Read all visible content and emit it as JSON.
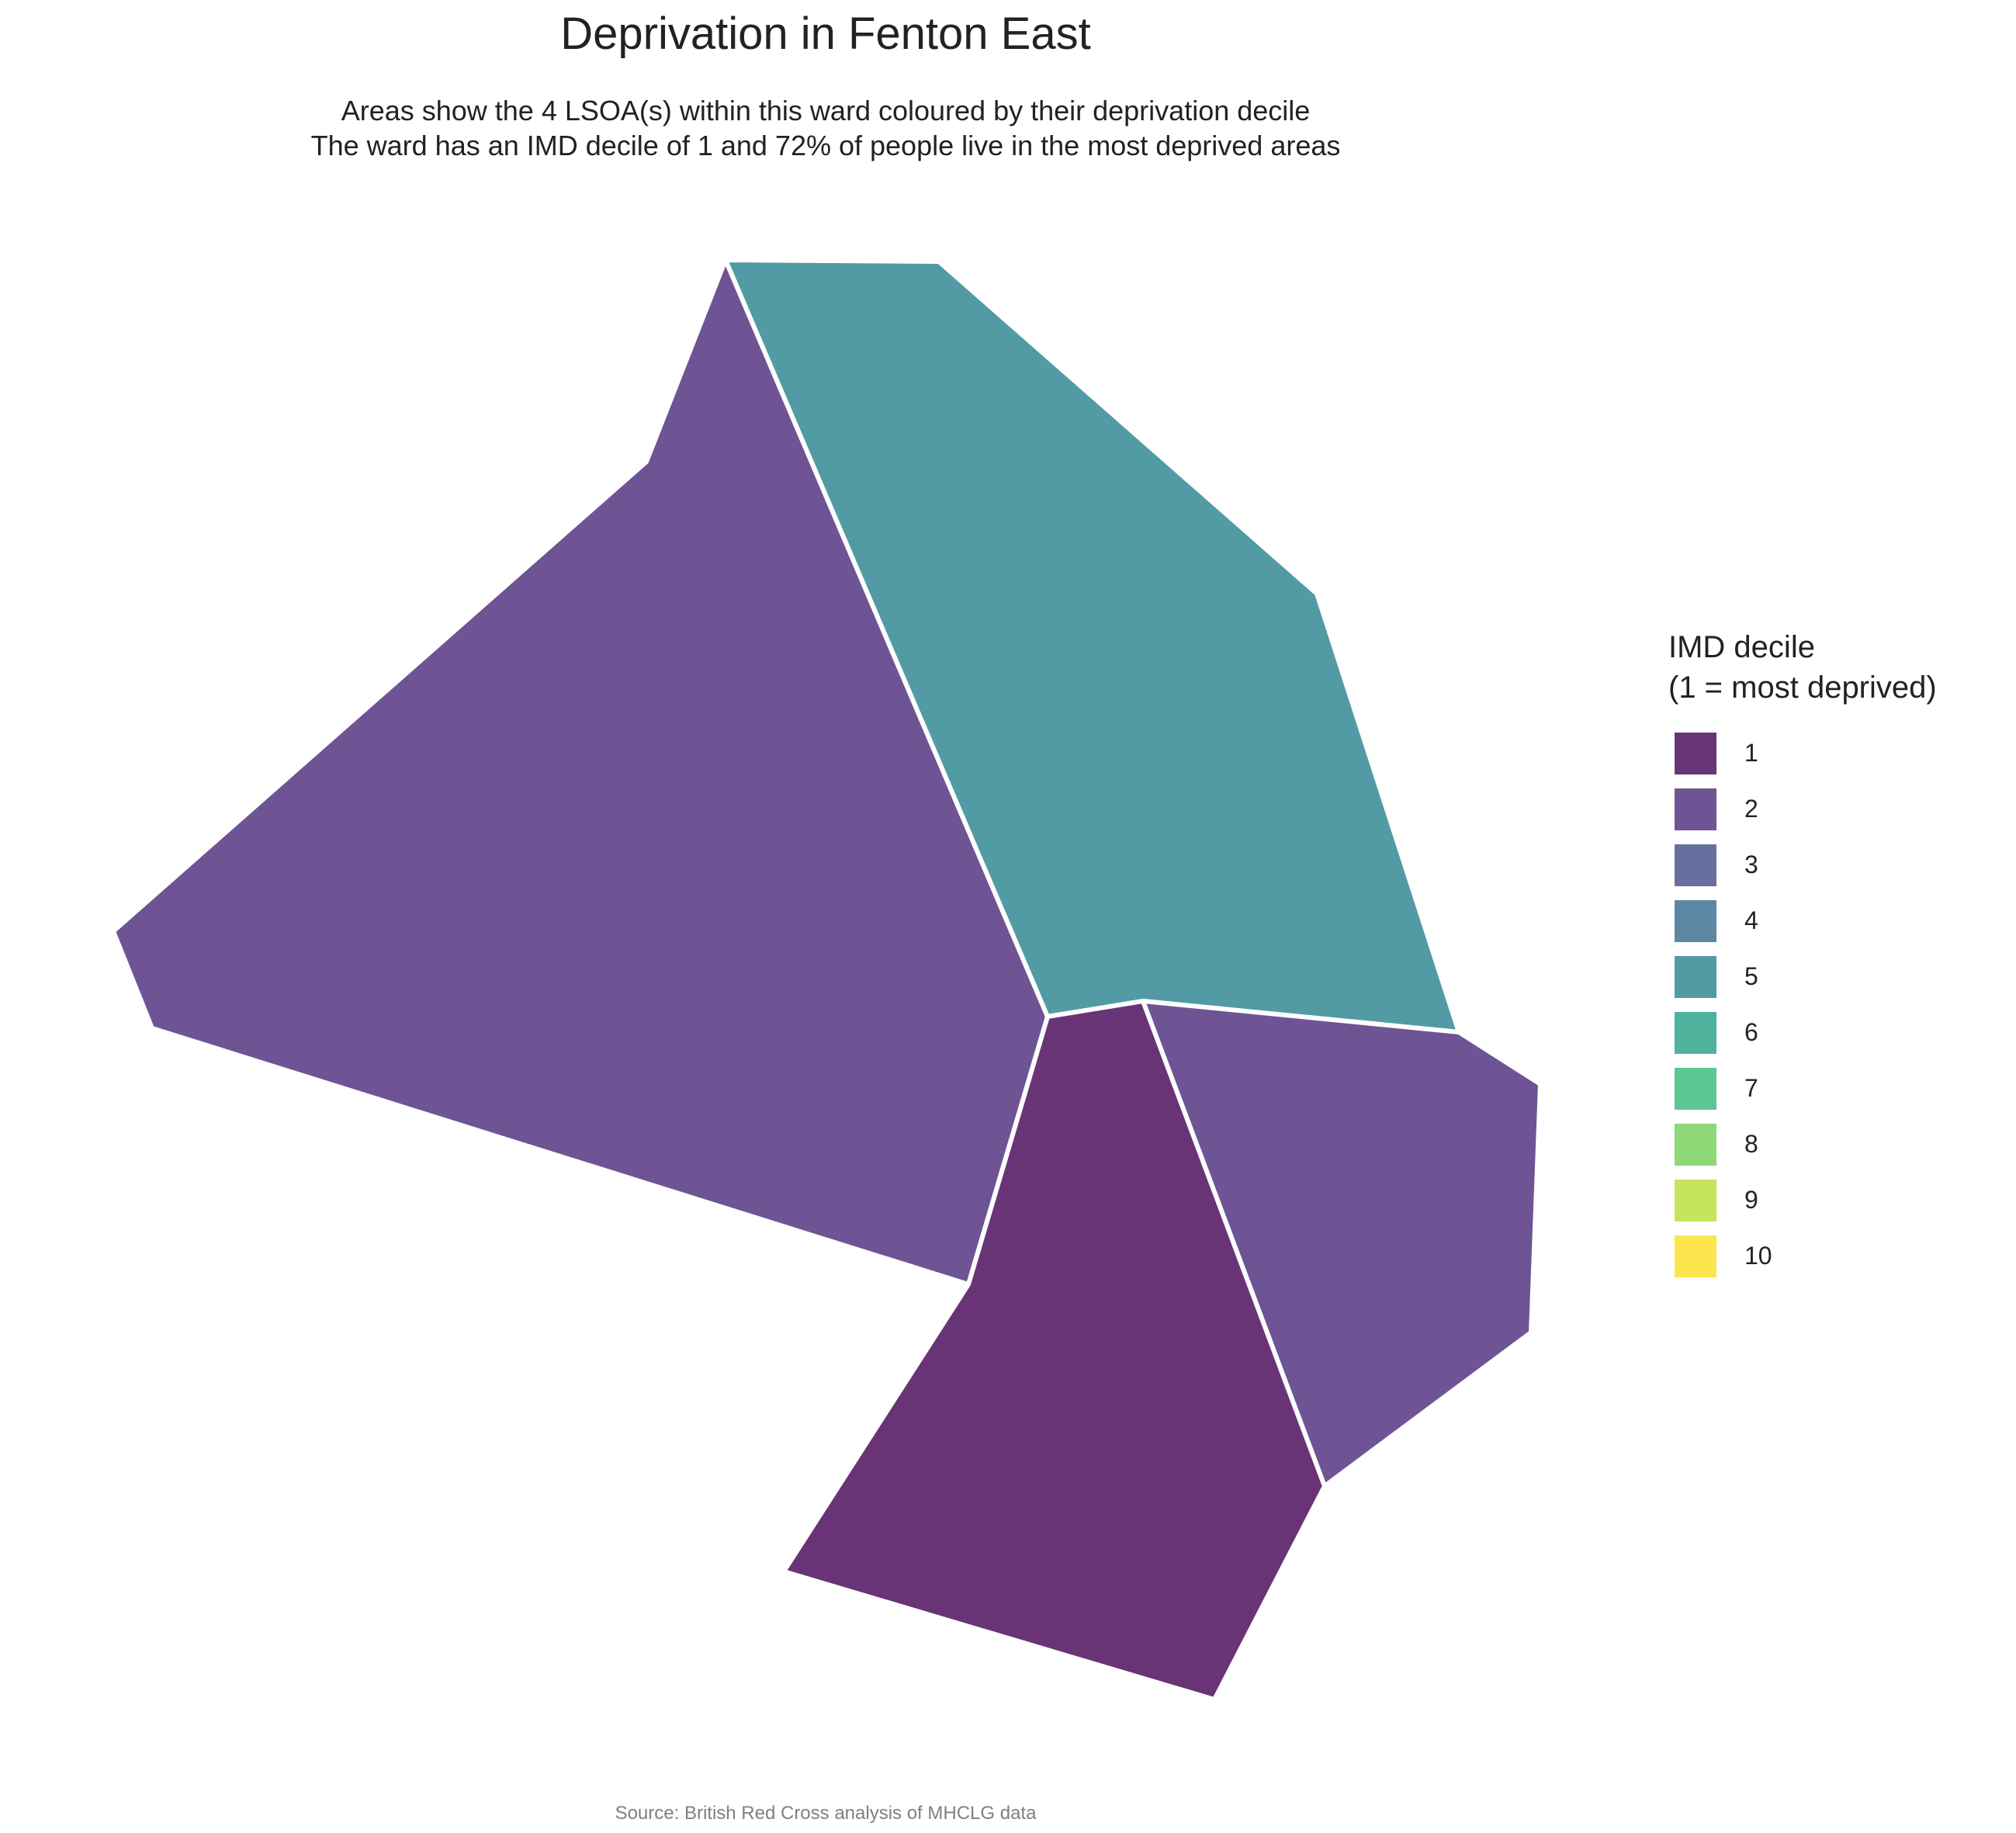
{
  "title": "Deprivation in Fenton East",
  "subtitle_lines": [
    "Areas show the 4 LSOA(s) within this ward coloured by their deprivation decile",
    "The ward has an IMD decile of 1 and 72% of people live in the most deprived areas"
  ],
  "legend": {
    "title_lines": [
      "IMD decile",
      "(1 = most deprived)"
    ],
    "items": [
      {
        "label": "1",
        "color": "#693476"
      },
      {
        "label": "2",
        "color": "#6E5494"
      },
      {
        "label": "3",
        "color": "#6670A0"
      },
      {
        "label": "4",
        "color": "#5C87A5"
      },
      {
        "label": "5",
        "color": "#529BA4"
      },
      {
        "label": "6",
        "color": "#4FB29D"
      },
      {
        "label": "7",
        "color": "#5DC792"
      },
      {
        "label": "8",
        "color": "#8ED877"
      },
      {
        "label": "9",
        "color": "#C6E55A"
      },
      {
        "label": "10",
        "color": "#FBE74D"
      }
    ]
  },
  "areas": [
    {
      "id": "lsoa-west",
      "decile": 2
    },
    {
      "id": "lsoa-north",
      "decile": 5
    },
    {
      "id": "lsoa-south",
      "decile": 1
    },
    {
      "id": "lsoa-east",
      "decile": 2
    }
  ],
  "caption": "Source: British Red Cross analysis of MHCLG data"
}
